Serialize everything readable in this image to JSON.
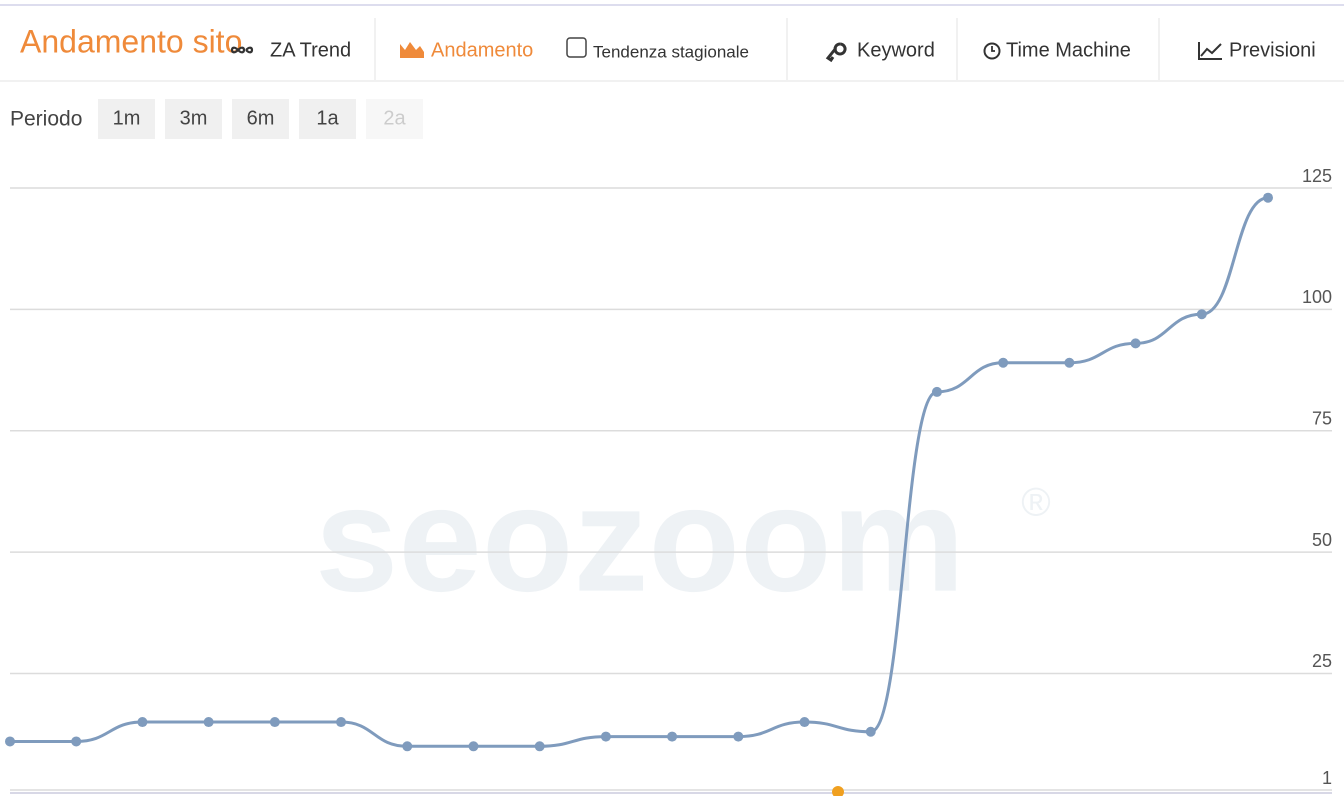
{
  "header": {
    "title": "Andamento sito",
    "tabs": [
      "ZA Trend",
      "Andamento",
      "Tendenza stagionale",
      "Keyword",
      "Time Machine",
      "Previsioni"
    ]
  },
  "period": {
    "label": "Periodo",
    "buttons": [
      "1m",
      "3m",
      "6m",
      "1a",
      "2a"
    ]
  },
  "watermark": "seozoom",
  "chart_data": {
    "type": "line",
    "categories": [
      null,
      null,
      null,
      null,
      null,
      null,
      null,
      null,
      null,
      null,
      null,
      null,
      null,
      null,
      null,
      null,
      null,
      null,
      null,
      null
    ],
    "series": [
      {
        "color": "#7f9bbd",
        "values": [
          11,
          11,
          15,
          15,
          15,
          15,
          10,
          10,
          10,
          12,
          12,
          12,
          15,
          13,
          83,
          89,
          89,
          93,
          99,
          123
        ]
      }
    ],
    "ylim": [
      1,
      125
    ],
    "yticks": [
      1,
      25,
      50,
      75,
      100,
      125
    ],
    "grid": true
  }
}
